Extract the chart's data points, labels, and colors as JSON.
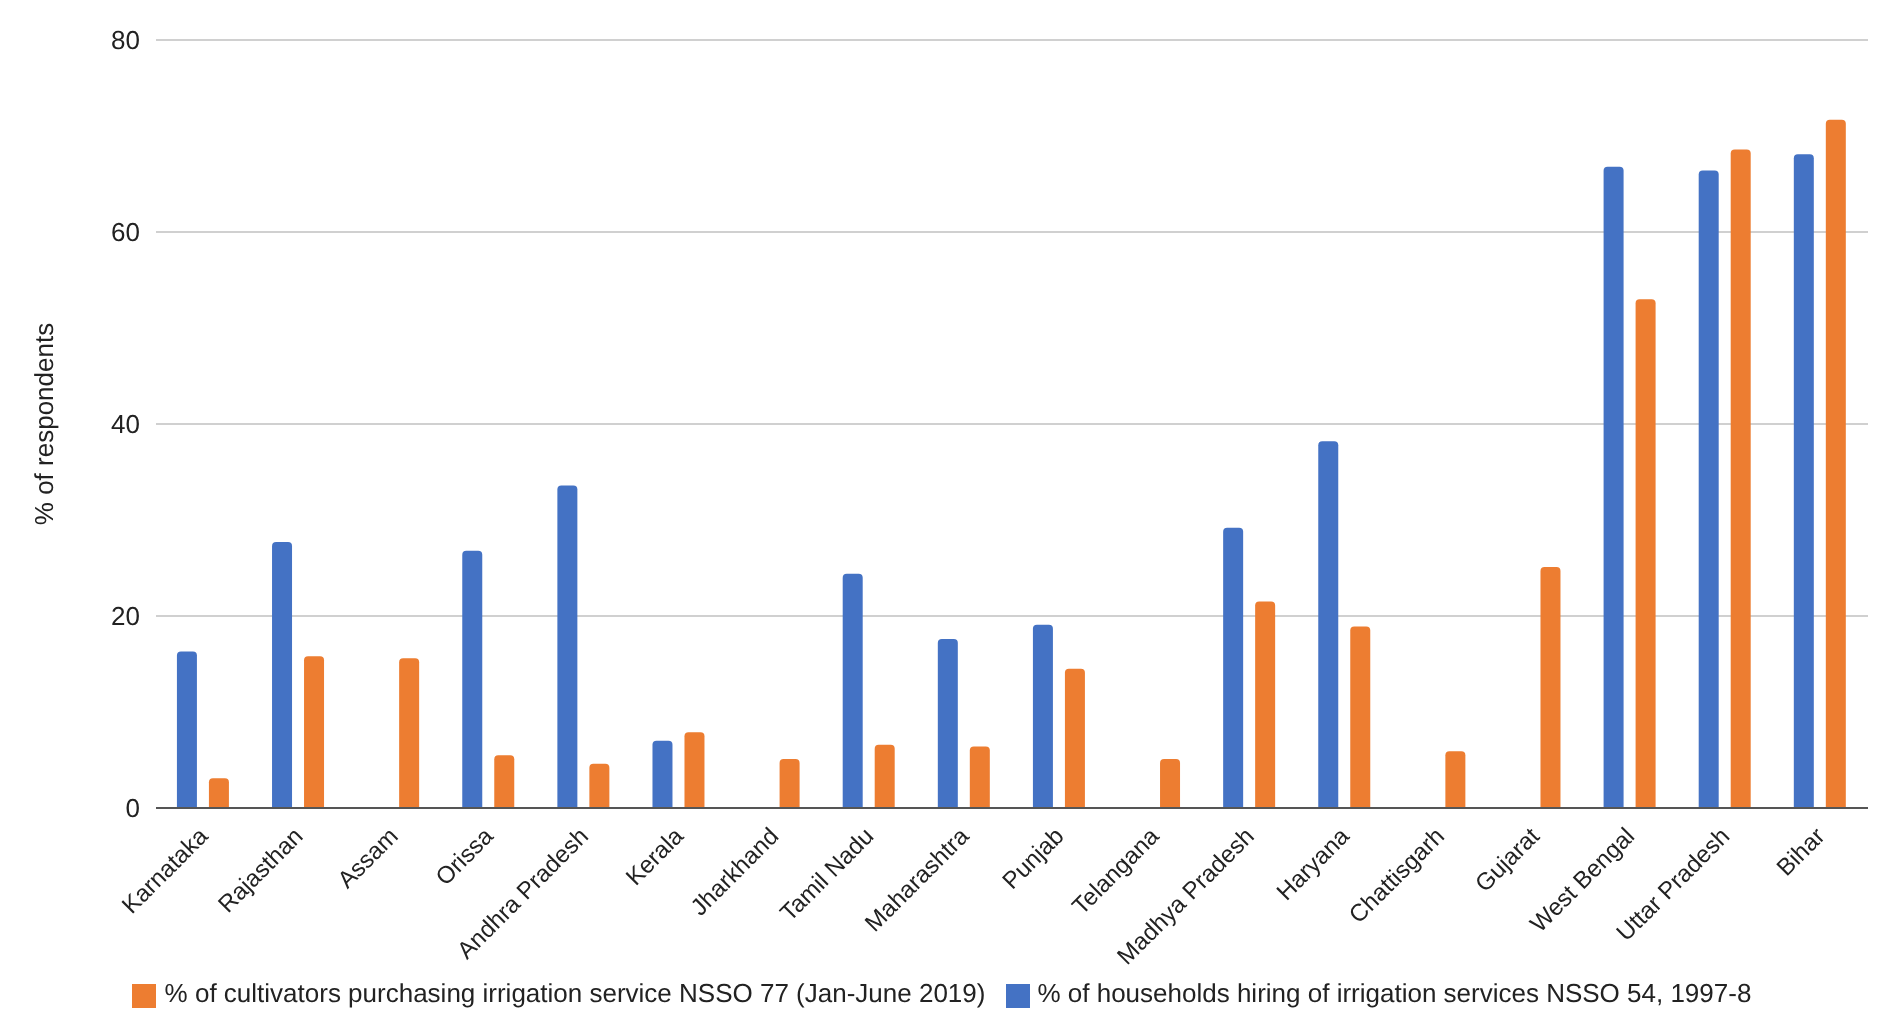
{
  "chart_data": {
    "type": "bar",
    "ylabel": "% of respondents",
    "categories": [
      "Karnataka",
      "Rajasthan",
      "Assam",
      "Orissa",
      "Andhra Pradesh",
      "Kerala",
      "Jharkhand",
      "Tamil Nadu",
      "Maharashtra",
      "Punjab",
      "Telangana",
      "Madhya Pradesh",
      "Haryana",
      "Chattisgarh",
      "Gujarat",
      "West Bengal",
      "Uttar Pradesh",
      "Bihar"
    ],
    "series": [
      {
        "name": "% of households hiring of irrigation services NSSO 54, 1997-8",
        "color": "#4472c4",
        "values": [
          16.3,
          27.7,
          null,
          26.8,
          33.6,
          7.0,
          null,
          24.4,
          17.6,
          19.1,
          null,
          29.2,
          38.2,
          null,
          null,
          66.8,
          66.4,
          68.1
        ]
      },
      {
        "name": "% of cultivators purchasing irrigation service NSSO 77 (Jan-June 2019)",
        "color": "#ed7d31",
        "values": [
          3.1,
          15.8,
          15.6,
          5.5,
          4.6,
          7.9,
          5.1,
          6.6,
          6.4,
          14.5,
          5.1,
          21.5,
          18.9,
          5.9,
          25.1,
          53,
          68.6,
          71.7
        ]
      }
    ],
    "ylim": [
      0,
      80
    ],
    "yticks": [
      0,
      20,
      40,
      60,
      80
    ],
    "grid": "y",
    "legend": "bottom"
  }
}
